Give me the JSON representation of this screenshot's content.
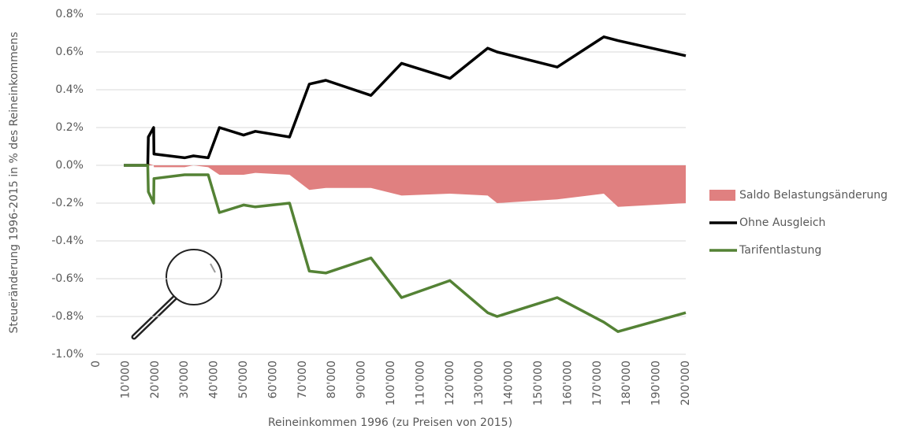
{
  "chart_data": {
    "type": "line",
    "x_label": "Reineinkommen 1996 (zu Preisen von 2015)",
    "y_label": "Steueränderung 1996-2015 in % des Reineinkommens",
    "x": [
      9400,
      17500,
      17700,
      19500,
      19600,
      30000,
      33000,
      38000,
      41800,
      50000,
      54000,
      65600,
      72300,
      77900,
      93200,
      103600,
      120000,
      132800,
      136000,
      156400,
      172200,
      177000,
      200000
    ],
    "series": [
      {
        "name": "Saldo Belastungsänderung",
        "style": "area",
        "color": "#e08080",
        "values": [
          0,
          0,
          0.01,
          0,
          -0.01,
          -0.01,
          0,
          -0.01,
          -0.05,
          -0.05,
          -0.04,
          -0.05,
          -0.13,
          -0.12,
          -0.12,
          -0.16,
          -0.15,
          -0.16,
          -0.2,
          -0.18,
          -0.15,
          -0.22,
          -0.2
        ]
      },
      {
        "name": "Ohne Ausgleich",
        "style": "line",
        "color": "#000000",
        "values": [
          0,
          0,
          0.15,
          0.2,
          0.06,
          0.04,
          0.05,
          0.04,
          0.2,
          0.16,
          0.18,
          0.15,
          0.43,
          0.45,
          0.37,
          0.54,
          0.46,
          0.62,
          0.6,
          0.52,
          0.68,
          0.66,
          0.58
        ]
      },
      {
        "name": "Tarifentlastung",
        "style": "line",
        "color": "#548235",
        "values": [
          0,
          0,
          -0.14,
          -0.2,
          -0.07,
          -0.05,
          -0.05,
          -0.05,
          -0.25,
          -0.21,
          -0.22,
          -0.2,
          -0.56,
          -0.57,
          -0.49,
          -0.7,
          -0.61,
          -0.78,
          -0.8,
          -0.7,
          -0.83,
          -0.88,
          -0.78
        ]
      }
    ],
    "xlim": [
      0,
      200000
    ],
    "xticks": [
      0,
      {
        "value": 10000,
        "label": "10'000"
      },
      {
        "value": 20000,
        "label": "20'000"
      },
      {
        "value": 30000,
        "label": "30'000"
      },
      {
        "value": 40000,
        "label": "40'000"
      },
      {
        "value": 50000,
        "label": "50'000"
      },
      {
        "value": 60000,
        "label": "60'000"
      },
      {
        "value": 70000,
        "label": "70'000"
      },
      {
        "value": 80000,
        "label": "80'000"
      },
      {
        "value": 90000,
        "label": "90'000"
      },
      {
        "value": 100000,
        "label": "100'000"
      },
      {
        "value": 110000,
        "label": "110'000"
      },
      {
        "value": 120000,
        "label": "120'000"
      },
      {
        "value": 130000,
        "label": "130'000"
      },
      {
        "value": 140000,
        "label": "140'000"
      },
      {
        "value": 150000,
        "label": "150'000"
      },
      {
        "value": 160000,
        "label": "160'000"
      },
      {
        "value": 170000,
        "label": "170'000"
      },
      {
        "value": 180000,
        "label": "180'000"
      },
      {
        "value": 190000,
        "label": "190'000"
      },
      {
        "value": 200000,
        "label": "200'000"
      }
    ],
    "ylim": [
      -1.0,
      0.8
    ],
    "yticks": [
      {
        "value": -1.0,
        "label": "-1.0%"
      },
      {
        "value": -0.8,
        "label": "-0.8%"
      },
      {
        "value": -0.6,
        "label": "-0.6%"
      },
      {
        "value": -0.4,
        "label": "-0.4%"
      },
      {
        "value": -0.2,
        "label": "-0.2%"
      },
      {
        "value": 0,
        "label": "0.0%"
      },
      {
        "value": 0.2,
        "label": "0.2%"
      },
      {
        "value": 0.4,
        "label": "0.4%"
      },
      {
        "value": 0.6,
        "label": "0.6%"
      },
      {
        "value": 0.8,
        "label": "0.8%"
      }
    ],
    "grid": true,
    "legend": "right"
  }
}
